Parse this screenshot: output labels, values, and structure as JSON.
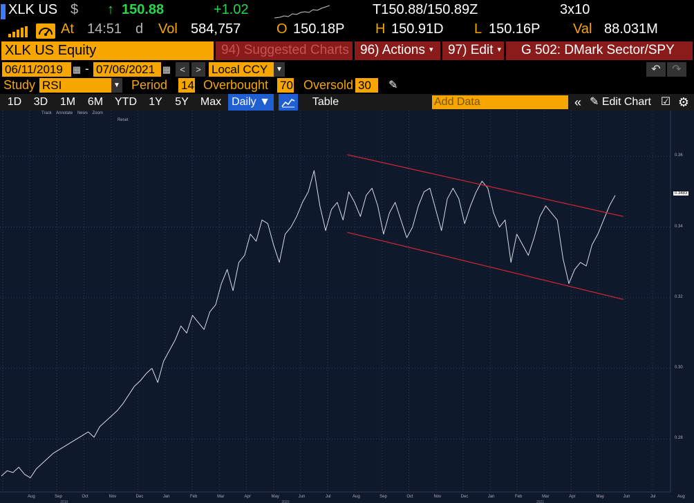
{
  "quote": {
    "ticker": "XLK US",
    "currency_symbol": "$",
    "last_price": "150.88",
    "change": "+1.02",
    "bid_ask": "T150.88/150.89Z",
    "size": "3x10",
    "at_label": "At",
    "time": "14:51",
    "time_suffix": "d",
    "vol_label": "Vol",
    "volume": "584,757",
    "open_label": "O",
    "open": "150.18P",
    "high_label": "H",
    "high": "150.91D",
    "low_label": "L",
    "low": "150.16P",
    "val_label": "Val",
    "value": "88.031M",
    "up_arrow": "↑"
  },
  "security_bar": {
    "title": "XLK US Equity",
    "suggested": "94) Suggested Charts",
    "actions": "96) Actions",
    "edit": "97) Edit",
    "caret": "▾",
    "chart_name": "G 502: DMark Sector/SPY"
  },
  "date_range": {
    "start": "06/11/2019",
    "separator": "-",
    "end": "07/06/2021",
    "currency": "Local CCY",
    "prev": "<",
    "next": ">",
    "undo": "↶",
    "redo": "↷"
  },
  "study": {
    "label": "Study",
    "value": "RSI",
    "period_label": "Period",
    "period": "14",
    "overbought_label": "Overbought",
    "overbought": "70",
    "oversold_label": "Oversold",
    "oversold": "30"
  },
  "toolbar": {
    "ranges": [
      "1D",
      "3D",
      "1M",
      "6M",
      "YTD",
      "1Y",
      "5Y",
      "Max"
    ],
    "frequency": "Daily ▼",
    "table": "Table",
    "add_data_placeholder": "Add Data",
    "collapse": "«",
    "edit_chart": "Edit Chart"
  },
  "chart_tools": {
    "track": "Track",
    "annotate": "Annotate",
    "news": "News",
    "zoom": "Zoom",
    "reset": "Reset"
  },
  "colors": {
    "accent_orange": "#f7a600",
    "chart_bg": "#0e1a2c",
    "line": "#d9dde6",
    "trend": "#d22630",
    "up_green": "#28d84a"
  },
  "chart_data": {
    "type": "line",
    "title": "",
    "ylim": [
      0.265,
      0.373
    ],
    "y_ticks": [
      "0.36",
      "0.34",
      "0.32",
      "0.30",
      "0.28"
    ],
    "x_ticks": [
      "Aug",
      "Sep",
      "Oct",
      "Nov",
      "Dec",
      "Jan",
      "Feb",
      "Mar",
      "Apr",
      "May",
      "Jun",
      "Jul",
      "Aug",
      "Sep",
      "Oct",
      "Nov",
      "Dec",
      "Jan",
      "Feb",
      "Mar",
      "Apr",
      "May",
      "Jun",
      "Jul",
      "Aug"
    ],
    "year_labels": [
      "2019",
      "2020",
      "2021"
    ],
    "last_value": "0.3483",
    "series": [
      {
        "values": [
          0.2695,
          0.271,
          0.2705,
          0.272,
          0.27,
          0.269,
          0.2715,
          0.273,
          0.2745,
          0.276,
          0.277,
          0.278,
          0.279,
          0.28,
          0.281,
          0.282,
          0.2805,
          0.2835,
          0.285,
          0.2865,
          0.288,
          0.29,
          0.2925,
          0.295,
          0.2965,
          0.2985,
          0.3,
          0.296,
          0.302,
          0.305,
          0.308,
          0.312,
          0.31,
          0.315,
          0.313,
          0.311,
          0.316,
          0.318,
          0.324,
          0.328,
          0.322,
          0.33,
          0.332,
          0.338,
          0.336,
          0.342,
          0.341,
          0.335,
          0.33,
          0.338,
          0.34,
          0.343,
          0.347,
          0.35,
          0.356,
          0.346,
          0.339,
          0.345,
          0.347,
          0.342,
          0.35,
          0.347,
          0.343,
          0.349,
          0.351,
          0.346,
          0.338,
          0.344,
          0.347,
          0.342,
          0.337,
          0.34,
          0.346,
          0.35,
          0.351,
          0.345,
          0.339,
          0.348,
          0.351,
          0.348,
          0.341,
          0.346,
          0.35,
          0.353,
          0.351,
          0.344,
          0.34,
          0.342,
          0.33,
          0.338,
          0.335,
          0.332,
          0.337,
          0.343,
          0.346,
          0.344,
          0.342,
          0.331,
          0.324,
          0.328,
          0.33,
          0.329,
          0.335,
          0.338,
          0.342,
          0.346,
          0.349
        ]
      }
    ],
    "trendlines": [
      {
        "name": "upper channel",
        "x": [
          0.05,
          0.93
        ],
        "y": [
          0.3605,
          0.343
        ]
      },
      {
        "name": "lower channel",
        "x": [
          0.05,
          0.93
        ],
        "y": [
          0.3385,
          0.3195
        ]
      }
    ],
    "legend": "none",
    "grid": true
  }
}
